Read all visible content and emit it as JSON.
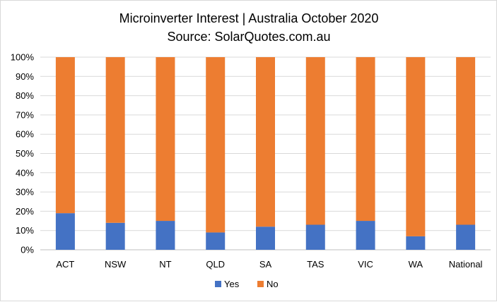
{
  "chart_data": {
    "type": "bar",
    "stacked": true,
    "title": "Microinverter  Interest | Australia October 2020",
    "subtitle": "Source: SolarQuotes.com.au",
    "xlabel": "",
    "ylabel": "",
    "categories": [
      "ACT",
      "NSW",
      "NT",
      "QLD",
      "SA",
      "TAS",
      "VIC",
      "WA",
      "National"
    ],
    "series": [
      {
        "name": "Yes",
        "color": "#4472c4",
        "values": [
          19,
          14,
          15,
          9,
          12,
          13,
          15,
          7,
          13
        ]
      },
      {
        "name": "No",
        "color": "#ed7d31",
        "values": [
          81,
          86,
          85,
          91,
          88,
          87,
          85,
          93,
          87
        ]
      }
    ],
    "ylim": [
      0,
      100
    ],
    "yticks": [
      "0%",
      "10%",
      "20%",
      "30%",
      "40%",
      "50%",
      "60%",
      "70%",
      "80%",
      "90%",
      "100%"
    ],
    "grid": true,
    "legend_position": "bottom"
  }
}
